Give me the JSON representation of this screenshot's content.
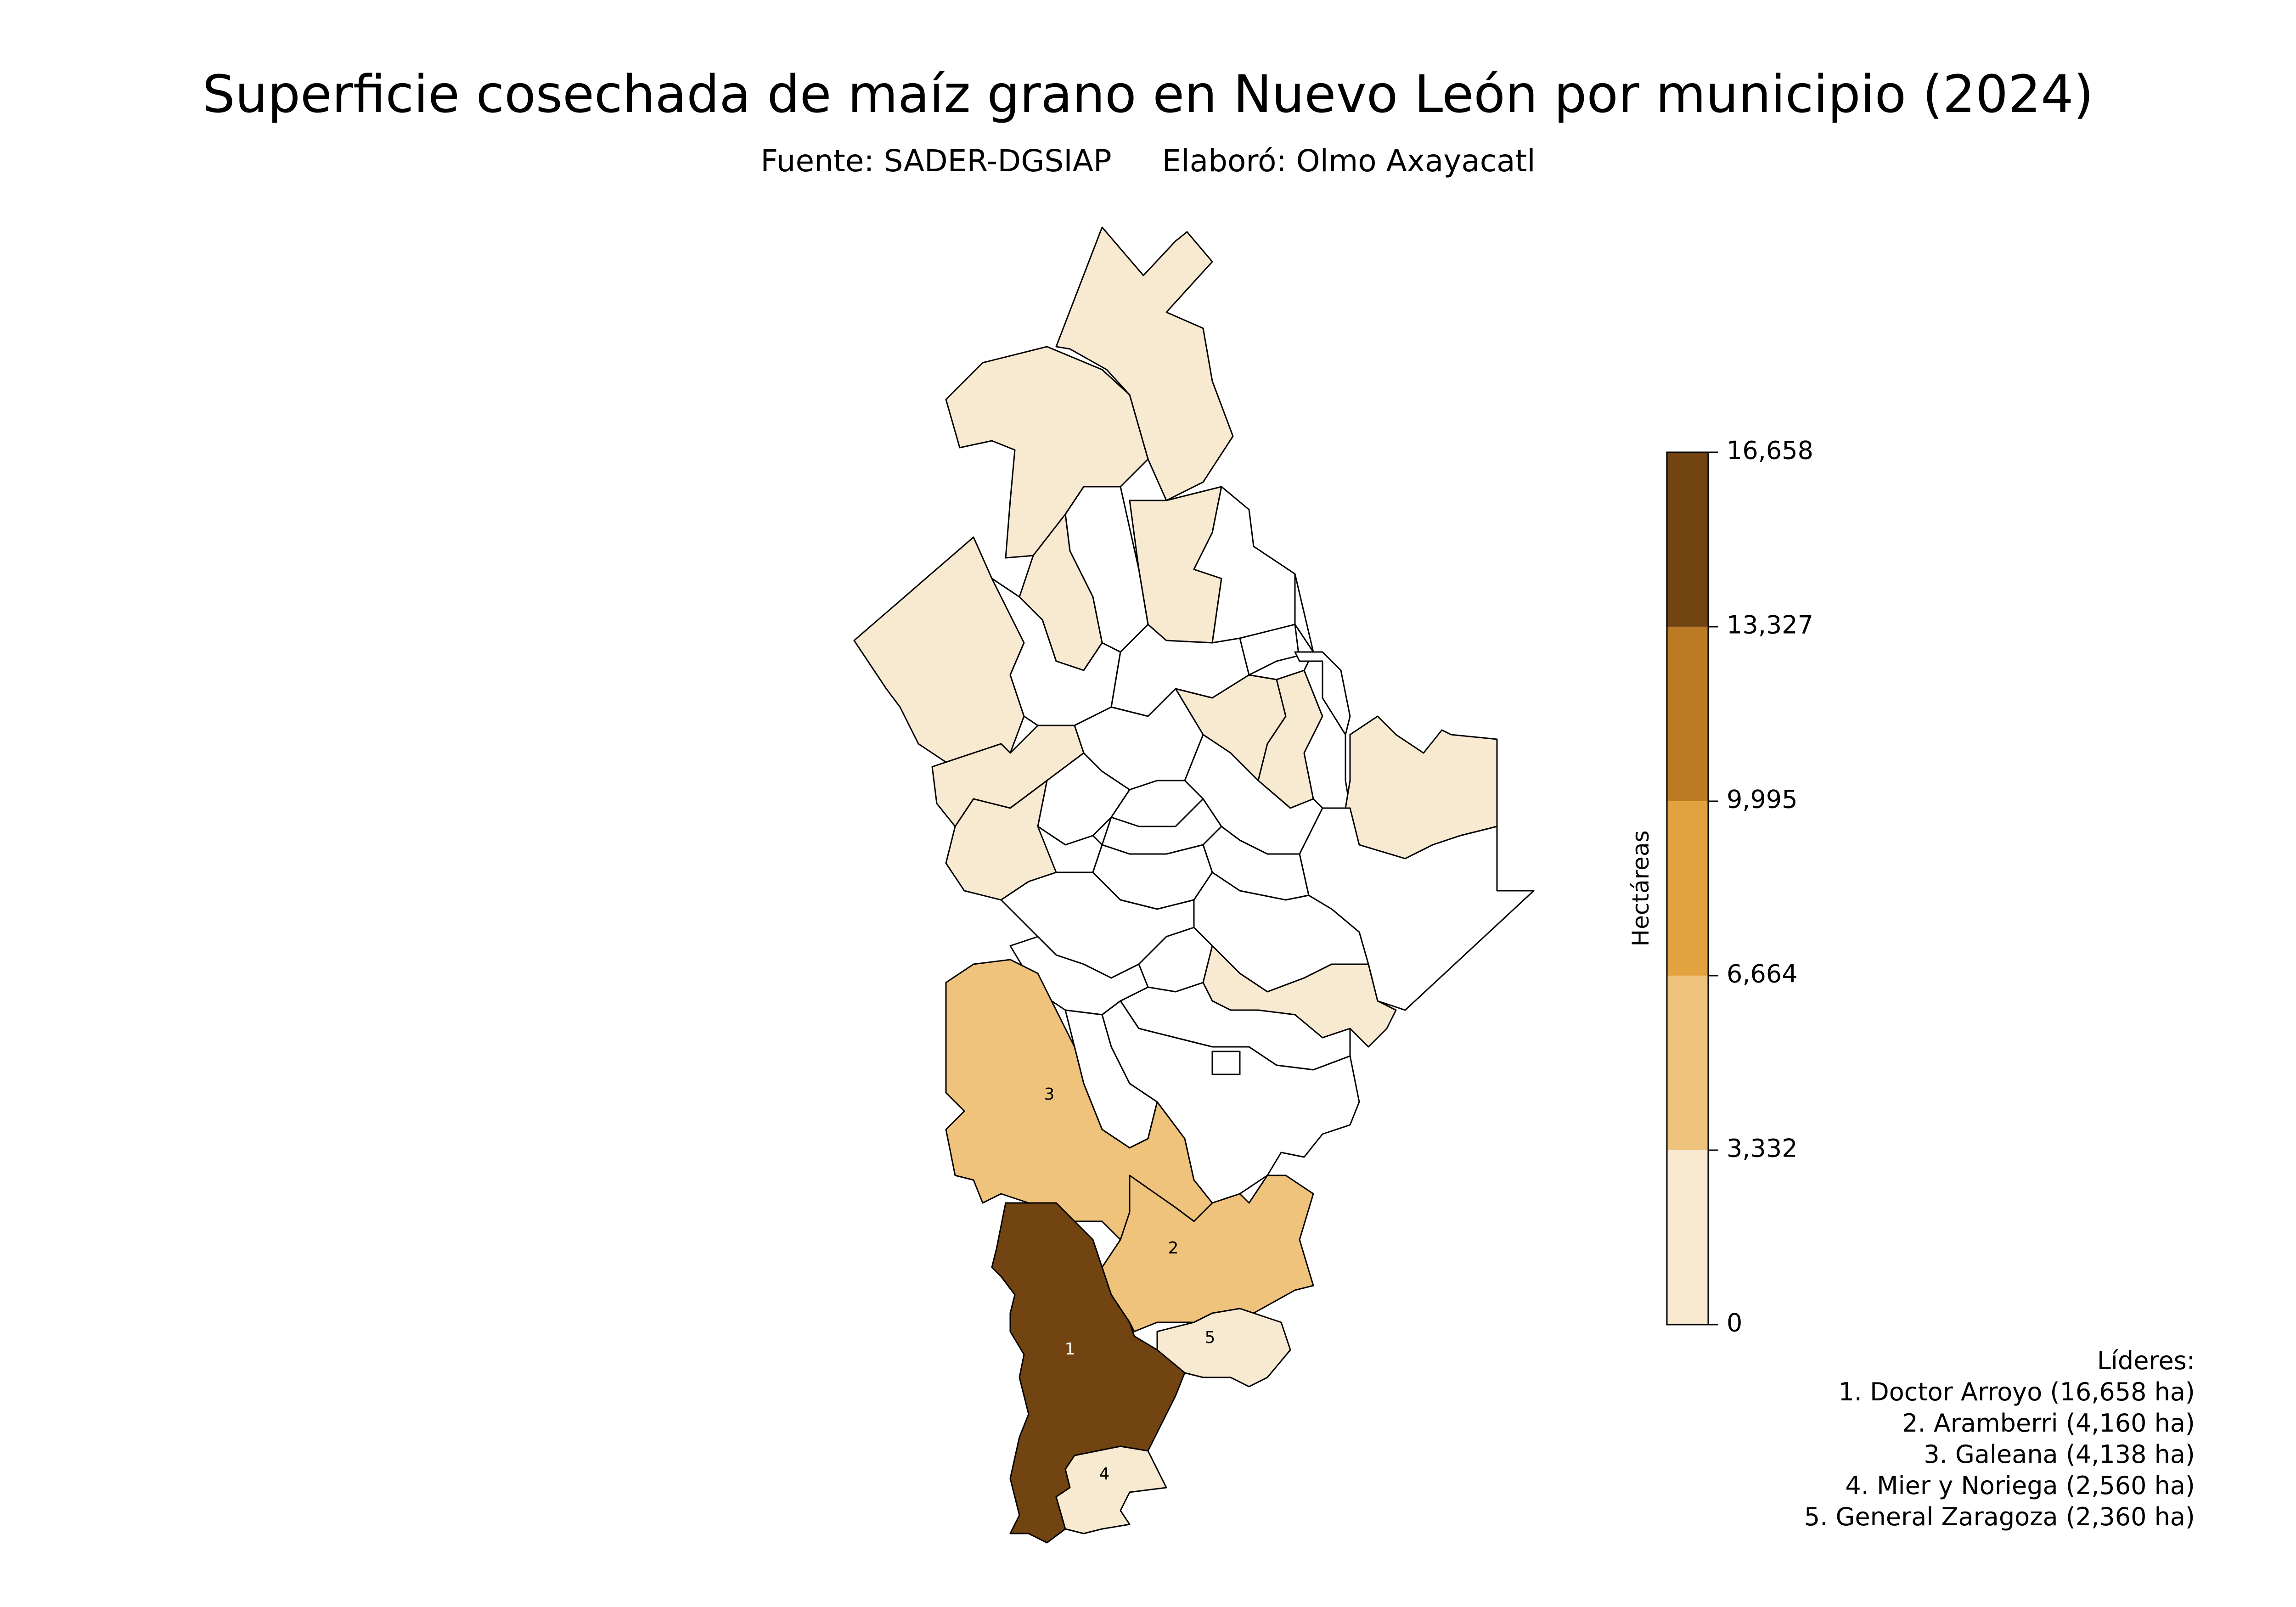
{
  "title": "Superficie cosechada de maíz grano en Nuevo León por municipio (2024)",
  "subtitle": {
    "source": "Fuente: SADER-DGSIAP",
    "author": "Elaboró: Olmo Axayacatl"
  },
  "colorbar": {
    "label": "Hectáreas",
    "ticks": [
      "16,658",
      "13,327",
      "9,995",
      "6,664",
      "3,332",
      "0"
    ],
    "bins": [
      {
        "min": 0,
        "max": 3332,
        "color": "#f8e9d1"
      },
      {
        "min": 3332,
        "max": 6664,
        "color": "#f0c37d"
      },
      {
        "min": 6664,
        "max": 9995,
        "color": "#e2a23f"
      },
      {
        "min": 9995,
        "max": 13327,
        "color": "#bb7b25"
      },
      {
        "min": 13327,
        "max": 16658,
        "color": "#724412"
      }
    ]
  },
  "map_labels": [
    "1",
    "2",
    "3",
    "4",
    "5"
  ],
  "leaders": {
    "heading": "Líderes:",
    "items": [
      "1. Doctor Arroyo (16,658 ha)",
      "2. Aramberri (4,160 ha)",
      "3. Galeana (4,138 ha)",
      "4. Mier y Noriega (2,560 ha)",
      "5. General Zaragoza (2,360 ha)"
    ]
  }
}
